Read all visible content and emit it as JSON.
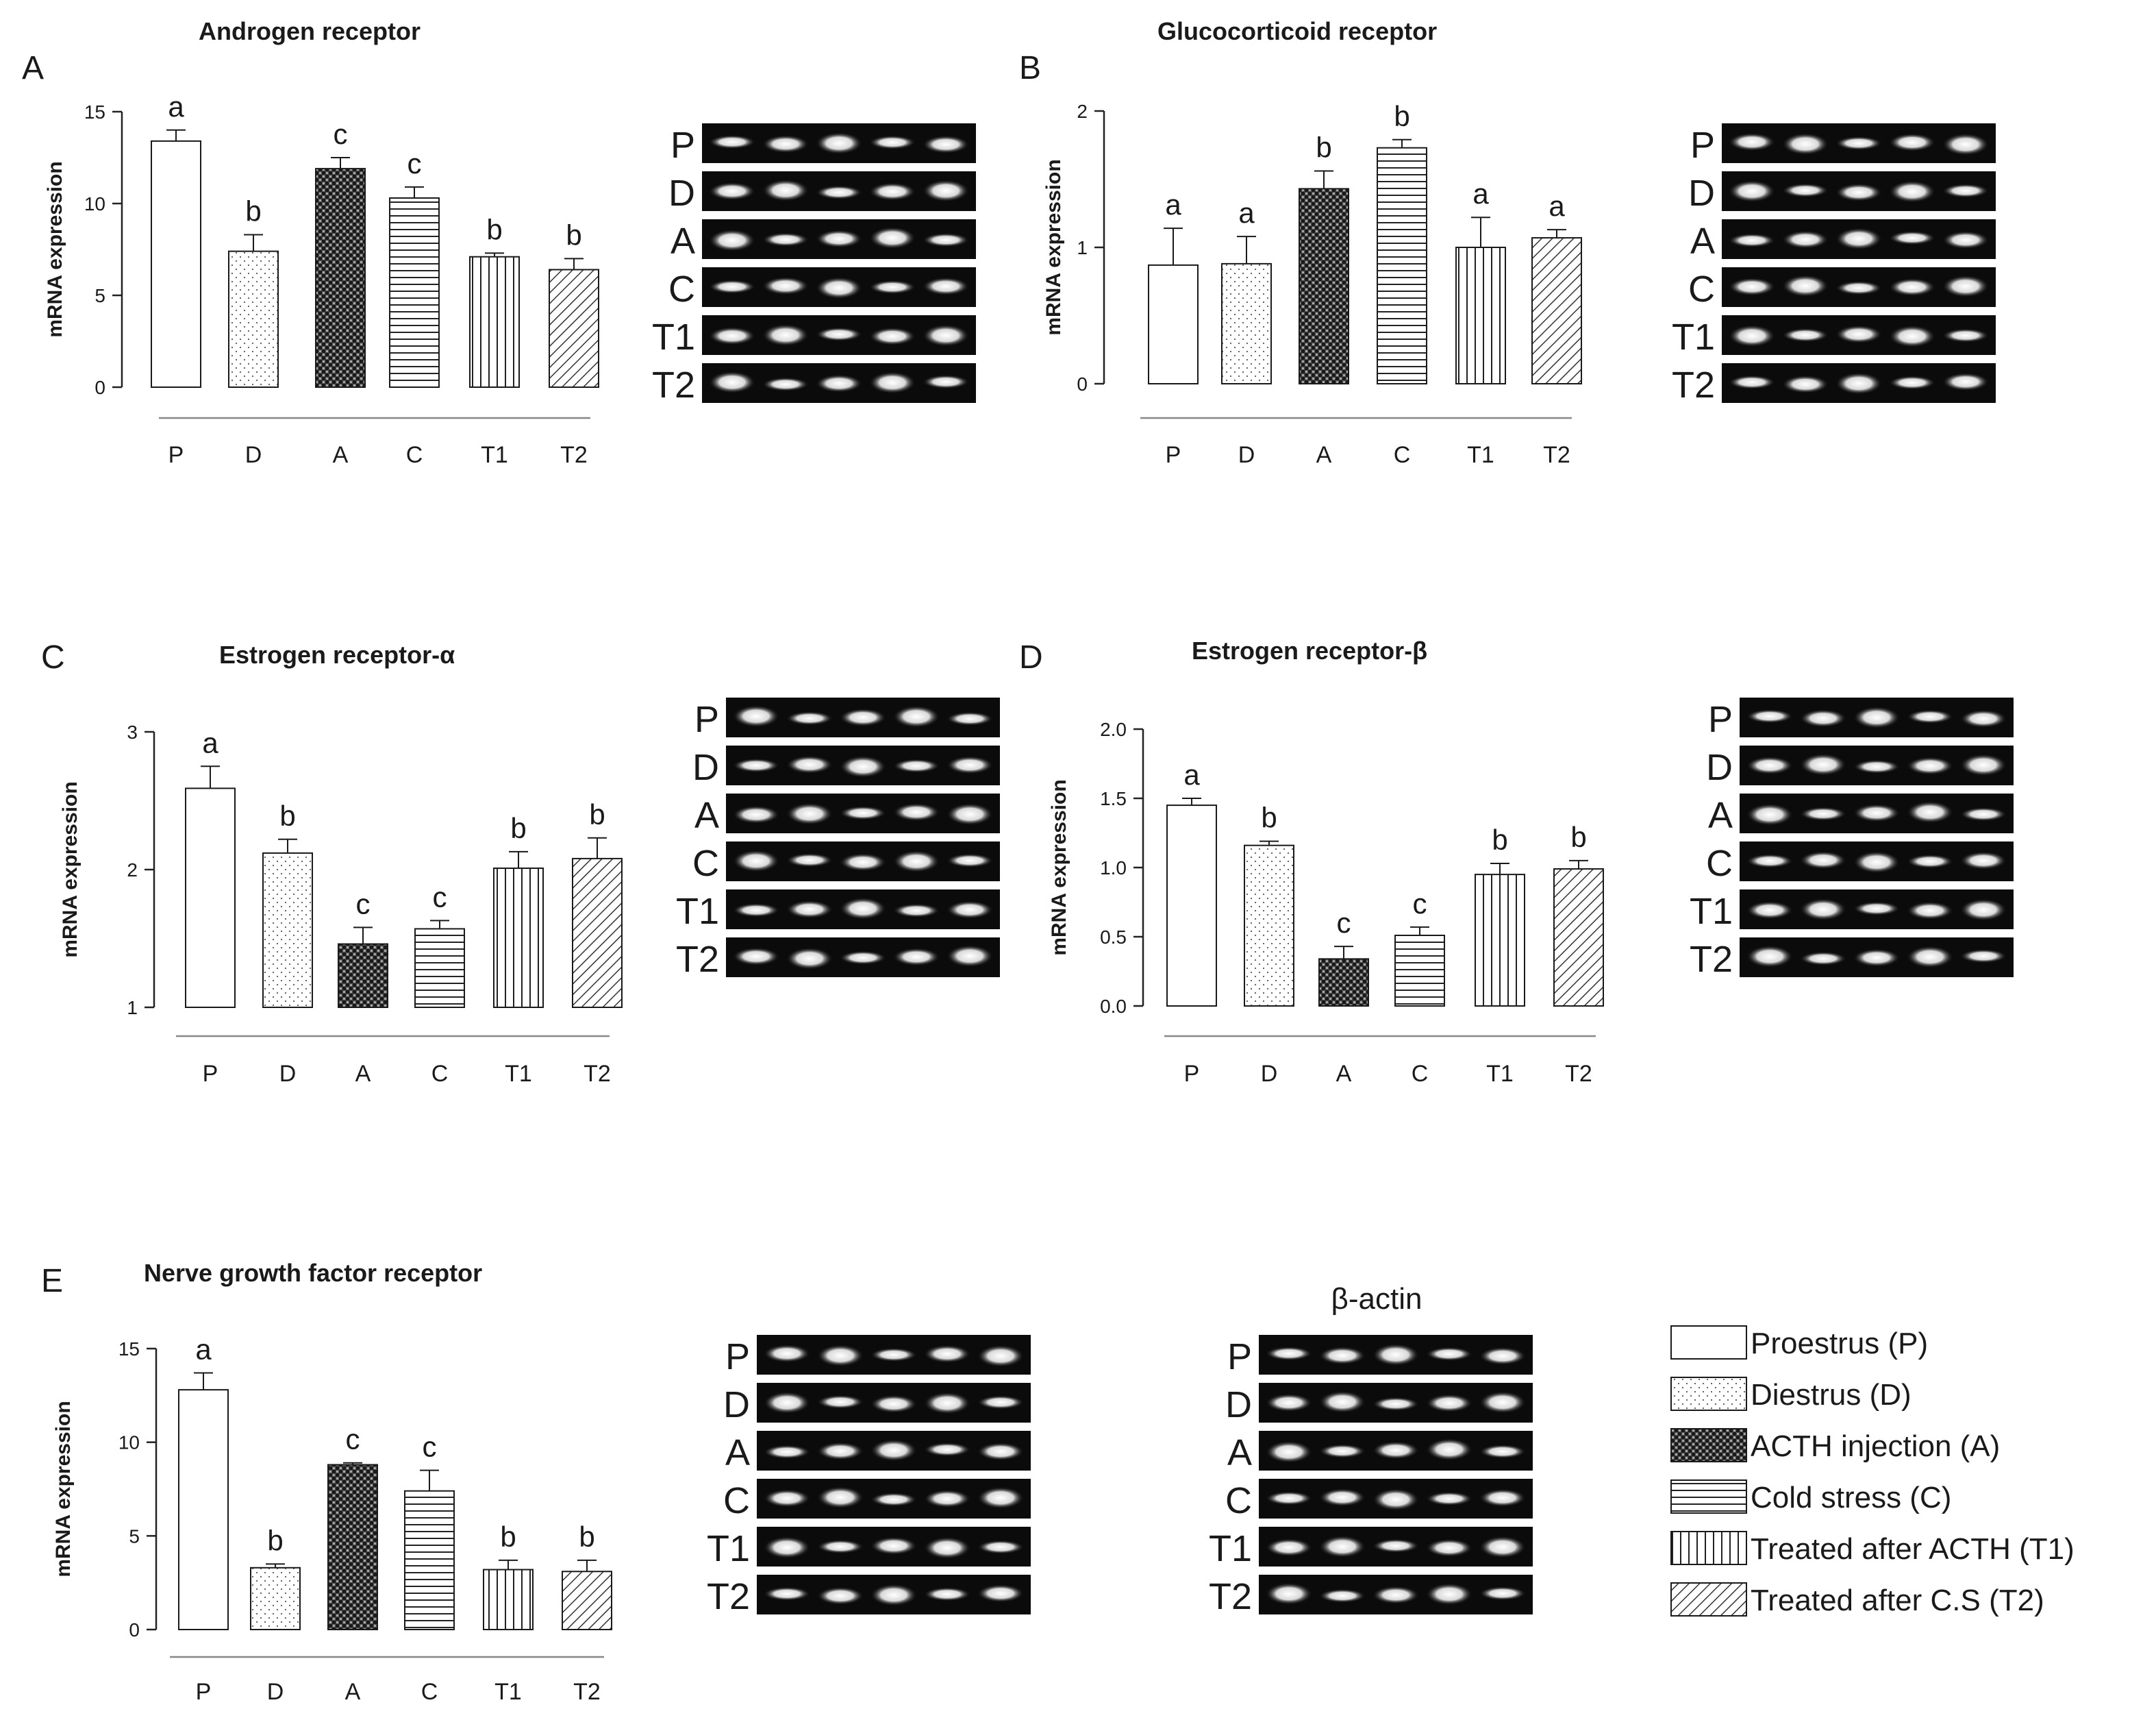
{
  "legend": {
    "items": [
      {
        "label": "Proestrus (P)",
        "pattern": "plain"
      },
      {
        "label": "Diestrus (D)",
        "pattern": "dots"
      },
      {
        "label": "ACTH injection (A)",
        "pattern": "check"
      },
      {
        "label": "Cold stress (C)",
        "pattern": "hlines"
      },
      {
        "label": "Treated after ACTH (T1)",
        "pattern": "vlines"
      },
      {
        "label": "Treated after C.S (T2)",
        "pattern": "diag"
      }
    ]
  },
  "colors": {
    "bar_edge": "#1a1a1a",
    "axis": "#222222",
    "gel_bg": "#0b0b0b",
    "band": "#f4f4f4"
  },
  "gel_lane_labels": [
    "P",
    "D",
    "A",
    "C",
    "T1",
    "T2"
  ],
  "beta_actin_title": "β-actin",
  "chart_data": [
    {
      "type": "bar",
      "panel": "A",
      "title": "Androgen receptor",
      "categories": [
        "P",
        "D",
        "A",
        "C",
        "T1",
        "T2"
      ],
      "values": [
        13.4,
        7.4,
        11.9,
        10.3,
        7.1,
        6.4
      ],
      "errors": [
        0.6,
        0.9,
        0.6,
        0.6,
        0.2,
        0.6
      ],
      "letters": [
        "a",
        "b",
        "c",
        "c",
        "b",
        "b"
      ],
      "ylabel": "mRNA expression",
      "xlabel": "",
      "ylim": [
        0,
        15
      ],
      "yticks": [
        0,
        5,
        10,
        15
      ]
    },
    {
      "type": "bar",
      "panel": "B",
      "title": "Glucocorticoid receptor",
      "categories": [
        "P",
        "D",
        "A",
        "C",
        "T1",
        "T2"
      ],
      "values": [
        0.87,
        0.88,
        1.43,
        1.73,
        1.0,
        1.07
      ],
      "errors": [
        0.27,
        0.2,
        0.13,
        0.06,
        0.22,
        0.06
      ],
      "letters": [
        "a",
        "a",
        "b",
        "b",
        "a",
        "a"
      ],
      "ylabel": "mRNA expression",
      "xlabel": "",
      "ylim": [
        0,
        2
      ],
      "yticks": [
        0,
        1,
        2
      ]
    },
    {
      "type": "bar",
      "panel": "C",
      "title": "Estrogen receptor-α",
      "categories": [
        "P",
        "D",
        "A",
        "C",
        "T1",
        "T2"
      ],
      "values": [
        2.59,
        2.12,
        1.46,
        1.57,
        2.01,
        2.08
      ],
      "errors": [
        0.16,
        0.1,
        0.12,
        0.06,
        0.12,
        0.15
      ],
      "letters": [
        "a",
        "b",
        "c",
        "c",
        "b",
        "b"
      ],
      "ylabel": "mRNA expression",
      "xlabel": "",
      "ylim": [
        1,
        3
      ],
      "yticks": [
        1,
        2,
        3
      ]
    },
    {
      "type": "bar",
      "panel": "D",
      "title": "Estrogen receptor-β",
      "categories": [
        "P",
        "D",
        "A",
        "C",
        "T1",
        "T2"
      ],
      "values": [
        1.45,
        1.16,
        0.34,
        0.51,
        0.95,
        0.99
      ],
      "errors": [
        0.05,
        0.03,
        0.09,
        0.06,
        0.08,
        0.06
      ],
      "letters": [
        "a",
        "b",
        "c",
        "c",
        "b",
        "b"
      ],
      "ylabel": "mRNA expression",
      "xlabel": "",
      "ylim": [
        0,
        2
      ],
      "yticks": [
        "0.0",
        "0.5",
        "1.0",
        "1.5",
        "2.0"
      ]
    },
    {
      "type": "bar",
      "panel": "E",
      "title": "Nerve growth factor receptor",
      "categories": [
        "P",
        "D",
        "A",
        "C",
        "T1",
        "T2"
      ],
      "values": [
        12.8,
        3.3,
        8.8,
        7.4,
        3.2,
        3.1
      ],
      "errors": [
        0.9,
        0.2,
        0.1,
        1.1,
        0.5,
        0.6
      ],
      "letters": [
        "a",
        "b",
        "c",
        "c",
        "b",
        "b"
      ],
      "ylabel": "mRNA expression",
      "xlabel": "",
      "ylim": [
        0,
        15
      ],
      "yticks": [
        0,
        5,
        10,
        15
      ]
    }
  ]
}
